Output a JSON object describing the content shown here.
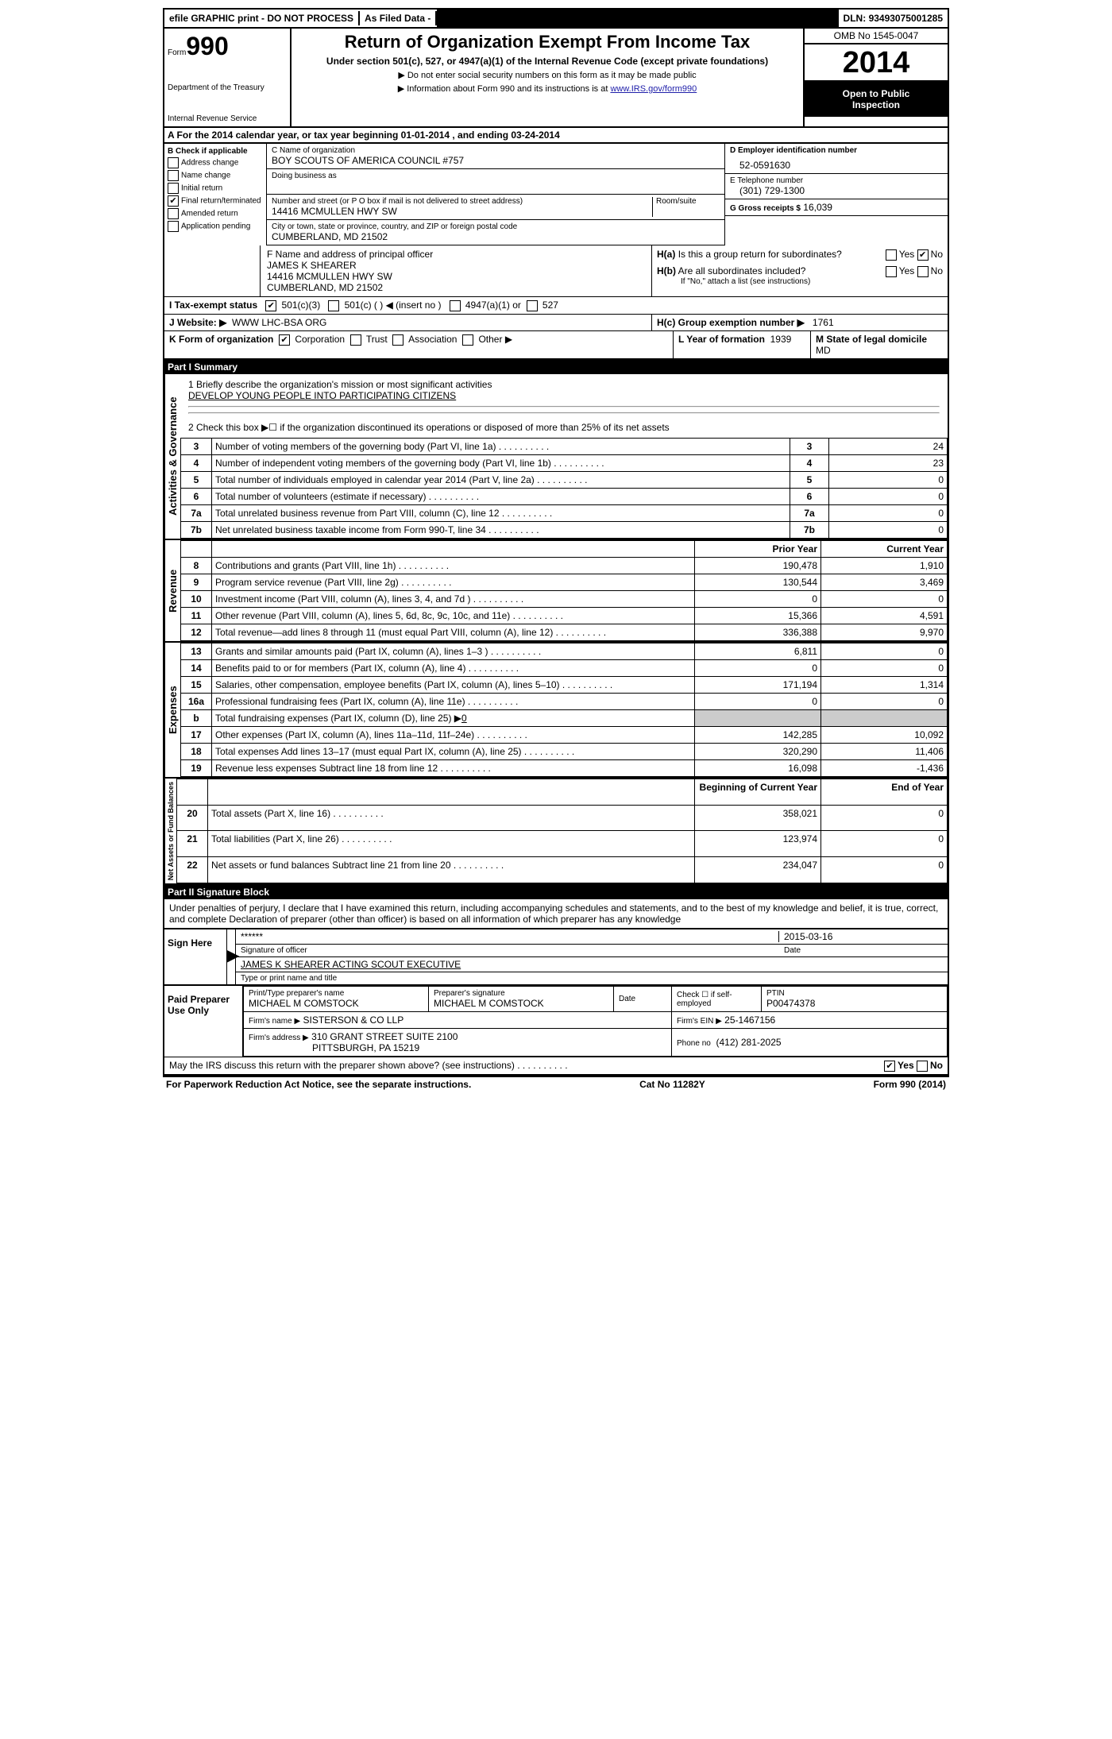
{
  "topbar": {
    "efile": "efile GRAPHIC print - DO NOT PROCESS",
    "asfiled": "As Filed Data -",
    "dln_label": "DLN:",
    "dln": "93493075001285"
  },
  "header": {
    "form_label": "Form",
    "form_no": "990",
    "dept1": "Department of the Treasury",
    "dept2": "Internal Revenue Service",
    "title": "Return of Organization Exempt From Income Tax",
    "subtitle": "Under section 501(c), 527, or 4947(a)(1) of the Internal Revenue Code (except private foundations)",
    "note1": "▶ Do not enter social security numbers on this form as it may be made public",
    "note2_pre": "▶ Information about Form 990 and its instructions is at ",
    "note2_link": "www.IRS.gov/form990",
    "omb": "OMB No 1545-0047",
    "year": "2014",
    "open1": "Open to Public",
    "open2": "Inspection"
  },
  "sectA": "A For the 2014 calendar year, or tax year beginning 01-01-2014   , and ending 03-24-2014",
  "colB": {
    "hdr": "B Check if applicable",
    "addr": "Address change",
    "name": "Name change",
    "initial": "Initial return",
    "final": "Final return/terminated",
    "amended": "Amended return",
    "app": "Application pending"
  },
  "entity": {
    "name_lbl": "C Name of organization",
    "name": "BOY SCOUTS OF AMERICA COUNCIL #757",
    "dba_lbl": "Doing business as",
    "addr_lbl": "Number and street (or P O  box if mail is not delivered to street address)",
    "room_lbl": "Room/suite",
    "addr": "14416 MCMULLEN HWY SW",
    "city_lbl": "City or town, state or province, country, and ZIP or foreign postal code",
    "city": "CUMBERLAND, MD  21502",
    "officer_lbl": "F  Name and address of principal officer",
    "officer_name": "JAMES K SHEARER",
    "officer_addr1": "14416 MCMULLEN HWY SW",
    "officer_addr2": "CUMBERLAND, MD  21502"
  },
  "colD": {
    "ein_lbl": "D Employer identification number",
    "ein": "52-0591630",
    "tel_lbl": "E Telephone number",
    "tel": "(301) 729-1300",
    "gross_lbl": "G Gross receipts $",
    "gross": "16,039",
    "ha_lbl": "H(a)  Is this a group return for subordinates?",
    "hb_lbl": "H(b)  Are all subordinates included?",
    "hb_note": "If \"No,\" attach a list  (see instructions)",
    "hc_lbl": "H(c)   Group exemption number ▶",
    "hc_val": "1761",
    "yes": "Yes",
    "no": "No"
  },
  "lineI": "I  Tax-exempt status",
  "lineI_opts": {
    "a": "501(c)(3)",
    "b": "501(c) (   ) ◀ (insert no )",
    "c": "4947(a)(1) or",
    "d": "527"
  },
  "lineJ": {
    "lbl": "J  Website: ▶",
    "val": "WWW LHC-BSA ORG"
  },
  "lineK": "K Form of organization",
  "lineK_opts": {
    "corp": "Corporation",
    "trust": "Trust",
    "assoc": "Association",
    "other": "Other ▶"
  },
  "lineL": {
    "lbl": "L Year of formation",
    "val": "1939"
  },
  "lineM": {
    "lbl": "M State of legal domicile",
    "val": "MD"
  },
  "partI": {
    "hdr": "Part I    Summary",
    "q1_lbl": "1   Briefly describe the organization's mission or most significant activities",
    "q1_val": "DEVELOP YOUNG PEOPLE INTO PARTICIPATING CITIZENS",
    "q2": "2   Check this box ▶☐ if the organization discontinued its operations or disposed of more than 25% of its net assets",
    "vlabel_ag": "Activities & Governance",
    "vlabel_rev": "Revenue",
    "vlabel_exp": "Expenses",
    "vlabel_na": "Net Assets or Fund Balances",
    "rows_ag": [
      {
        "n": "3",
        "t": "Number of voting members of the governing body (Part VI, line 1a)",
        "v": "24"
      },
      {
        "n": "4",
        "t": "Number of independent voting members of the governing body (Part VI, line 1b)",
        "v": "23"
      },
      {
        "n": "5",
        "t": "Total number of individuals employed in calendar year 2014 (Part V, line 2a)",
        "v": "0"
      },
      {
        "n": "6",
        "t": "Total number of volunteers (estimate if necessary)",
        "v": "0"
      },
      {
        "n": "7a",
        "t": "Total unrelated business revenue from Part VIII, column (C), line 12",
        "v": "0"
      },
      {
        "n": "7b",
        "t": "Net unrelated business taxable income from Form 990-T, line 34",
        "v": "0"
      }
    ],
    "col_py": "Prior Year",
    "col_cy": "Current Year",
    "rows_rev": [
      {
        "n": "8",
        "t": "Contributions and grants (Part VIII, line 1h)",
        "py": "190,478",
        "cy": "1,910"
      },
      {
        "n": "9",
        "t": "Program service revenue (Part VIII, line 2g)",
        "py": "130,544",
        "cy": "3,469"
      },
      {
        "n": "10",
        "t": "Investment income (Part VIII, column (A), lines 3, 4, and 7d )",
        "py": "0",
        "cy": "0"
      },
      {
        "n": "11",
        "t": "Other revenue (Part VIII, column (A), lines 5, 6d, 8c, 9c, 10c, and 11e)",
        "py": "15,366",
        "cy": "4,591"
      },
      {
        "n": "12",
        "t": "Total revenue—add lines 8 through 11 (must equal Part VIII, column (A), line 12)",
        "py": "336,388",
        "cy": "9,970"
      }
    ],
    "rows_exp": [
      {
        "n": "13",
        "t": "Grants and similar amounts paid (Part IX, column (A), lines 1–3 )",
        "py": "6,811",
        "cy": "0"
      },
      {
        "n": "14",
        "t": "Benefits paid to or for members (Part IX, column (A), line 4)",
        "py": "0",
        "cy": "0"
      },
      {
        "n": "15",
        "t": "Salaries, other compensation, employee benefits (Part IX, column (A), lines 5–10)",
        "py": "171,194",
        "cy": "1,314"
      },
      {
        "n": "16a",
        "t": "Professional fundraising fees (Part IX, column (A), line 11e)",
        "py": "0",
        "cy": "0"
      },
      {
        "n": "b",
        "t": "Total fundraising expenses (Part IX, column (D), line 25) ▶",
        "py": "",
        "cy": "",
        "val": "0"
      },
      {
        "n": "17",
        "t": "Other expenses (Part IX, column (A), lines 11a–11d, 11f–24e)",
        "py": "142,285",
        "cy": "10,092"
      },
      {
        "n": "18",
        "t": "Total expenses  Add lines 13–17 (must equal Part IX, column (A), line 25)",
        "py": "320,290",
        "cy": "11,406"
      },
      {
        "n": "19",
        "t": "Revenue less expenses  Subtract line 18 from line 12",
        "py": "16,098",
        "cy": "-1,436"
      }
    ],
    "col_boy": "Beginning of Current Year",
    "col_eoy": "End of Year",
    "rows_na": [
      {
        "n": "20",
        "t": "Total assets (Part X, line 16)",
        "py": "358,021",
        "cy": "0"
      },
      {
        "n": "21",
        "t": "Total liabilities (Part X, line 26)",
        "py": "123,974",
        "cy": "0"
      },
      {
        "n": "22",
        "t": "Net assets or fund balances  Subtract line 21 from line 20",
        "py": "234,047",
        "cy": "0"
      }
    ]
  },
  "partII": {
    "hdr": "Part II    Signature Block",
    "decl": "Under penalties of perjury, I declare that I have examined this return, including accompanying schedules and statements, and to the best of my knowledge and belief, it is true, correct, and complete  Declaration of preparer (other than officer) is based on all information of which preparer has any knowledge",
    "sign_here": "Sign Here",
    "sig_mask": "******",
    "sig_of_lbl": "Signature of officer",
    "date_lbl": "Date",
    "sig_date": "2015-03-16",
    "name_title": "JAMES K SHEARER ACTING SCOUT EXECUTIVE",
    "name_title_lbl": "Type or print name and title",
    "paid_hdr": "Paid Preparer Use Only",
    "prep_name_lbl": "Print/Type preparer's name",
    "prep_name": "MICHAEL M COMSTOCK",
    "prep_sig_lbl": "Preparer's signature",
    "prep_sig": "MICHAEL M COMSTOCK",
    "prep_date_lbl": "Date",
    "self_lbl": "Check ☐ if self-employed",
    "ptin_lbl": "PTIN",
    "ptin": "P00474378",
    "firm_name_lbl": "Firm's name   ▶",
    "firm_name": "SISTERSON & CO LLP",
    "firm_ein_lbl": "Firm's EIN ▶",
    "firm_ein": "25-1467156",
    "firm_addr_lbl": "Firm's address ▶",
    "firm_addr1": "310 GRANT STREET SUITE 2100",
    "firm_addr2": "PITTSBURGH, PA  15219",
    "phone_lbl": "Phone no",
    "phone": "(412) 281-2025",
    "discuss": "May the IRS discuss this return with the preparer shown above? (see instructions)"
  },
  "footer": {
    "pra": "For Paperwork Reduction Act Notice, see the separate instructions.",
    "cat": "Cat No 11282Y",
    "form": "Form 990 (2014)"
  }
}
